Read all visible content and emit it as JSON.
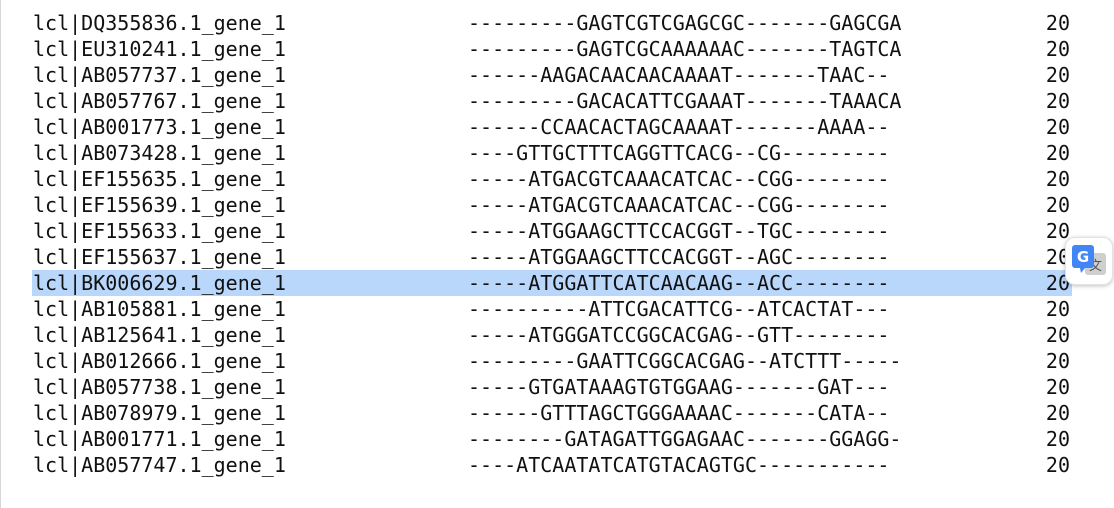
{
  "alignment": {
    "rows": [
      {
        "id": "lcl|DQ355836.1_gene_1",
        "sequence": "---------GAGTCGTCGAGCGC-------GAGCGA",
        "count": "20",
        "selected": false
      },
      {
        "id": "lcl|EU310241.1_gene_1",
        "sequence": "---------GAGTCGCAAAAAAC-------TAGTCA",
        "count": "20",
        "selected": false
      },
      {
        "id": "lcl|AB057737.1_gene_1",
        "sequence": "------AAGACAACAACAAAAT-------TAAC--",
        "count": "20",
        "selected": false
      },
      {
        "id": "lcl|AB057767.1_gene_1",
        "sequence": "---------GACACATTCGAAAT-------TAAACA",
        "count": "20",
        "selected": false
      },
      {
        "id": "lcl|AB001773.1_gene_1",
        "sequence": "------CCAACACTAGCAAAAT-------AAAA--",
        "count": "20",
        "selected": false
      },
      {
        "id": "lcl|AB073428.1_gene_1",
        "sequence": "----GTTGCTTTCAGGTTCACG--CG---------",
        "count": "20",
        "selected": false
      },
      {
        "id": "lcl|EF155635.1_gene_1",
        "sequence": "-----ATGACGTCAAACATCAC--CGG--------",
        "count": "20",
        "selected": false
      },
      {
        "id": "lcl|EF155639.1_gene_1",
        "sequence": "-----ATGACGTCAAACATCAC--CGG--------",
        "count": "20",
        "selected": false
      },
      {
        "id": "lcl|EF155633.1_gene_1",
        "sequence": "-----ATGGAAGCTTCCACGGT--TGC--------",
        "count": "20",
        "selected": false
      },
      {
        "id": "lcl|EF155637.1_gene_1",
        "sequence": "-----ATGGAAGCTTCCACGGT--AGC--------",
        "count": "20",
        "selected": false
      },
      {
        "id": "lcl|BK006629.1_gene_1",
        "sequence": "-----ATGGATTCATCAACAAG--ACC--------",
        "count": "20",
        "selected": true
      },
      {
        "id": "lcl|AB105881.1_gene_1",
        "sequence": "----------ATTCGACATTCG--ATCACTAT---",
        "count": "20",
        "selected": false
      },
      {
        "id": "lcl|AB125641.1_gene_1",
        "sequence": "-----ATGGGATCCGGCACGAG--GTT--------",
        "count": "20",
        "selected": false
      },
      {
        "id": "lcl|AB012666.1_gene_1",
        "sequence": "---------GAATTCGGCACGAG--ATCTTT-----",
        "count": "20",
        "selected": false
      },
      {
        "id": "lcl|AB057738.1_gene_1",
        "sequence": "-----GTGATAAAGTGTGGAAG-------GAT---",
        "count": "20",
        "selected": false
      },
      {
        "id": "lcl|AB078979.1_gene_1",
        "sequence": "------GTTTAGCTGGGAAAAC-------CATA--",
        "count": "20",
        "selected": false
      },
      {
        "id": "lcl|AB001771.1_gene_1",
        "sequence": "--------GATAGATTGGAGAAC-------GGAGG-",
        "count": "20",
        "selected": false
      },
      {
        "id": "lcl|AB057747.1_gene_1",
        "sequence": "----ATCAATATCATGTACAGTGC-----------",
        "count": "20",
        "selected": false
      }
    ]
  },
  "translate_widget": {
    "icon": "google-translate-icon",
    "colors": {
      "blue": "#4285f4",
      "grey": "#cfcfcf"
    }
  },
  "colors": {
    "selection": "#b9d6fb",
    "text": "#111111"
  }
}
